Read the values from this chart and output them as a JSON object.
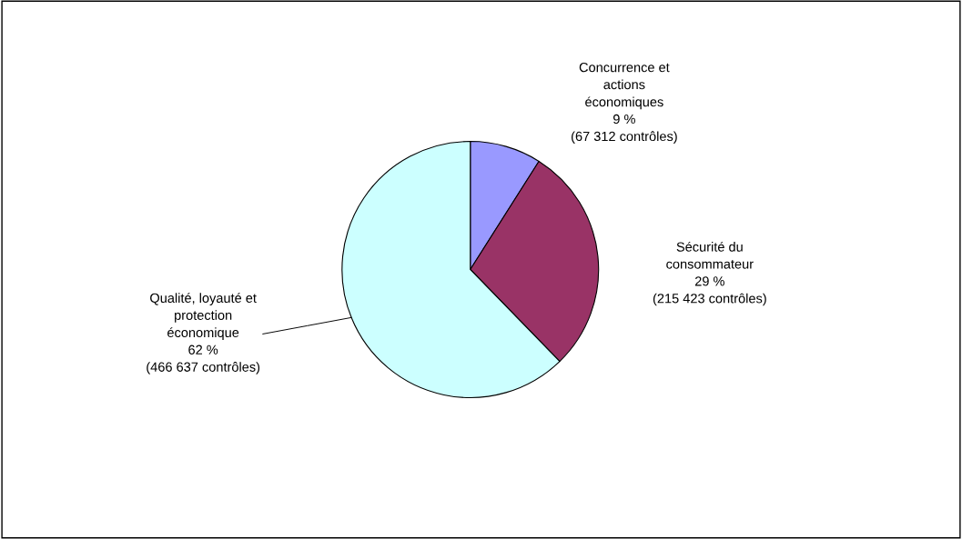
{
  "chart_data": {
    "type": "pie",
    "categories": [
      "Concurrence et\nactions\néconomiques",
      "Sécurité du\nconsommateur",
      "Qualité, loyauté et\nprotection\néconomique"
    ],
    "values": [
      67312,
      215423,
      466637
    ],
    "value_labels": [
      "9 %\n(67 312 contrôles)",
      "29 %\n(215 423 contrôles)",
      "62 %\n(466 637 contrôles)"
    ],
    "colors": [
      "#9999ff",
      "#993366",
      "#ccffff"
    ],
    "legend": false
  }
}
